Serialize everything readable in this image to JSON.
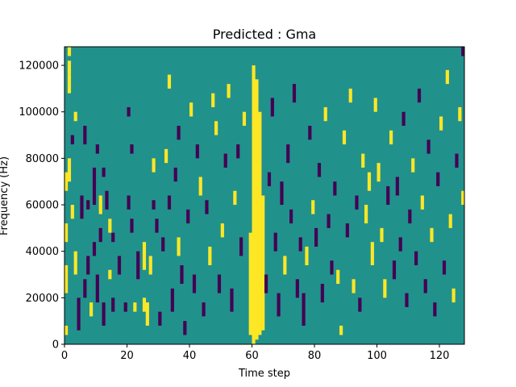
{
  "chart_data": {
    "type": "heatmap",
    "title": "Predicted : Gma",
    "xlabel": "Time step",
    "ylabel": "Frequency (Hz)",
    "xlim": [
      0,
      128
    ],
    "ylim": [
      0,
      128000
    ],
    "x_ticks": [
      "0",
      "20",
      "40",
      "60",
      "80",
      "100",
      "120"
    ],
    "y_ticks": [
      "0",
      "20000",
      "40000",
      "60000",
      "80000",
      "100000",
      "120000"
    ],
    "grid": false,
    "colors": {
      "background": "#21918c",
      "high": "#fde725",
      "low": "#440154"
    },
    "cell_values": {
      "background": 0.5,
      "high": 1,
      "low": 0
    },
    "cells": [
      {
        "t": 0,
        "f": 4000,
        "h": 4000,
        "v": 1
      },
      {
        "t": 0,
        "f": 22000,
        "h": 12000,
        "v": 1
      },
      {
        "t": 0,
        "f": 44000,
        "h": 8000,
        "v": 1
      },
      {
        "t": 0,
        "f": 66000,
        "h": 8000,
        "v": 1
      },
      {
        "t": 1,
        "f": 70000,
        "h": 10000,
        "v": 1
      },
      {
        "t": 1,
        "f": 108000,
        "h": 8000,
        "v": 1
      },
      {
        "t": 1,
        "f": 116000,
        "h": 6000,
        "v": 1
      },
      {
        "t": 1,
        "f": 124000,
        "h": 4000,
        "v": 1
      },
      {
        "t": 2,
        "f": 86000,
        "h": 4000,
        "v": 0
      },
      {
        "t": 2,
        "f": 54000,
        "h": 6000,
        "v": 1
      },
      {
        "t": 3,
        "f": 30000,
        "h": 10000,
        "v": 1
      },
      {
        "t": 3,
        "f": 96000,
        "h": 4000,
        "v": 1
      },
      {
        "t": 4,
        "f": 6000,
        "h": 14000,
        "v": 0
      },
      {
        "t": 5,
        "f": 54000,
        "h": 10000,
        "v": 0
      },
      {
        "t": 6,
        "f": 86000,
        "h": 8000,
        "v": 0
      },
      {
        "t": 6,
        "f": 20000,
        "h": 8000,
        "v": 0
      },
      {
        "t": 7,
        "f": 30000,
        "h": 8000,
        "v": 0
      },
      {
        "t": 7,
        "f": 58000,
        "h": 4000,
        "v": 0
      },
      {
        "t": 8,
        "f": 12000,
        "h": 6000,
        "v": 1
      },
      {
        "t": 9,
        "f": 38000,
        "h": 6000,
        "v": 0
      },
      {
        "t": 9,
        "f": 60000,
        "h": 16000,
        "v": 0
      },
      {
        "t": 10,
        "f": 82000,
        "h": 4000,
        "v": 0
      },
      {
        "t": 10,
        "f": 18000,
        "h": 12000,
        "v": 0
      },
      {
        "t": 11,
        "f": 56000,
        "h": 8000,
        "v": 1
      },
      {
        "t": 11,
        "f": 44000,
        "h": 6000,
        "v": 0
      },
      {
        "t": 12,
        "f": 8000,
        "h": 10000,
        "v": 0
      },
      {
        "t": 12,
        "f": 72000,
        "h": 4000,
        "v": 0
      },
      {
        "t": 13,
        "f": 58000,
        "h": 8000,
        "v": 0
      },
      {
        "t": 14,
        "f": 28000,
        "h": 4000,
        "v": 1
      },
      {
        "t": 14,
        "f": 48000,
        "h": 6000,
        "v": 1
      },
      {
        "t": 15,
        "f": 44000,
        "h": 4000,
        "v": 0
      },
      {
        "t": 15,
        "f": 14000,
        "h": 6000,
        "v": 0
      },
      {
        "t": 17,
        "f": 30000,
        "h": 8000,
        "v": 0
      },
      {
        "t": 19,
        "f": 14000,
        "h": 4000,
        "v": 0
      },
      {
        "t": 20,
        "f": 58000,
        "h": 6000,
        "v": 0
      },
      {
        "t": 20,
        "f": 98000,
        "h": 4000,
        "v": 0
      },
      {
        "t": 21,
        "f": 48000,
        "h": 6000,
        "v": 0
      },
      {
        "t": 21,
        "f": 82000,
        "h": 4000,
        "v": 0
      },
      {
        "t": 22,
        "f": 14000,
        "h": 4000,
        "v": 1
      },
      {
        "t": 23,
        "f": 28000,
        "h": 12000,
        "v": 0
      },
      {
        "t": 25,
        "f": 32000,
        "h": 12000,
        "v": 1
      },
      {
        "t": 25,
        "f": 14000,
        "h": 6000,
        "v": 1
      },
      {
        "t": 26,
        "f": 8000,
        "h": 10000,
        "v": 1
      },
      {
        "t": 27,
        "f": 30000,
        "h": 8000,
        "v": 1
      },
      {
        "t": 28,
        "f": 58000,
        "h": 4000,
        "v": 0
      },
      {
        "t": 28,
        "f": 74000,
        "h": 6000,
        "v": 1
      },
      {
        "t": 29,
        "f": 48000,
        "h": 6000,
        "v": 0
      },
      {
        "t": 30,
        "f": 8000,
        "h": 6000,
        "v": 0
      },
      {
        "t": 31,
        "f": 40000,
        "h": 6000,
        "v": 0
      },
      {
        "t": 32,
        "f": 78000,
        "h": 6000,
        "v": 1
      },
      {
        "t": 33,
        "f": 110000,
        "h": 6000,
        "v": 1
      },
      {
        "t": 33,
        "f": 58000,
        "h": 6000,
        "v": 0
      },
      {
        "t": 34,
        "f": 14000,
        "h": 10000,
        "v": 0
      },
      {
        "t": 35,
        "f": 70000,
        "h": 6000,
        "v": 0
      },
      {
        "t": 36,
        "f": 38000,
        "h": 8000,
        "v": 1
      },
      {
        "t": 36,
        "f": 88000,
        "h": 6000,
        "v": 0
      },
      {
        "t": 37,
        "f": 26000,
        "h": 8000,
        "v": 0
      },
      {
        "t": 38,
        "f": 4000,
        "h": 6000,
        "v": 0
      },
      {
        "t": 39,
        "f": 52000,
        "h": 6000,
        "v": 0
      },
      {
        "t": 40,
        "f": 98000,
        "h": 6000,
        "v": 1
      },
      {
        "t": 41,
        "f": 22000,
        "h": 8000,
        "v": 0
      },
      {
        "t": 42,
        "f": 80000,
        "h": 6000,
        "v": 0
      },
      {
        "t": 43,
        "f": 64000,
        "h": 8000,
        "v": 1
      },
      {
        "t": 44,
        "f": 12000,
        "h": 6000,
        "v": 0
      },
      {
        "t": 45,
        "f": 56000,
        "h": 6000,
        "v": 0
      },
      {
        "t": 46,
        "f": 34000,
        "h": 8000,
        "v": 1
      },
      {
        "t": 47,
        "f": 102000,
        "h": 6000,
        "v": 1
      },
      {
        "t": 48,
        "f": 90000,
        "h": 6000,
        "v": 1
      },
      {
        "t": 49,
        "f": 22000,
        "h": 8000,
        "v": 0
      },
      {
        "t": 50,
        "f": 46000,
        "h": 6000,
        "v": 1
      },
      {
        "t": 51,
        "f": 76000,
        "h": 6000,
        "v": 0
      },
      {
        "t": 52,
        "f": 106000,
        "h": 6000,
        "v": 1
      },
      {
        "t": 53,
        "f": 14000,
        "h": 10000,
        "v": 0
      },
      {
        "t": 54,
        "f": 60000,
        "h": 6000,
        "v": 1
      },
      {
        "t": 55,
        "f": 80000,
        "h": 6000,
        "v": 0
      },
      {
        "t": 56,
        "f": 38000,
        "h": 8000,
        "v": 0
      },
      {
        "t": 57,
        "f": 94000,
        "h": 6000,
        "v": 1
      },
      {
        "t": 59,
        "f": 4000,
        "h": 44000,
        "v": 1
      },
      {
        "t": 60,
        "f": 0,
        "h": 120000,
        "v": 1
      },
      {
        "t": 61,
        "f": 2000,
        "h": 112000,
        "v": 1
      },
      {
        "t": 62,
        "f": 4000,
        "h": 96000,
        "v": 1
      },
      {
        "t": 63,
        "f": 6000,
        "h": 58000,
        "v": 1
      },
      {
        "t": 64,
        "f": 22000,
        "h": 8000,
        "v": 0
      },
      {
        "t": 65,
        "f": 68000,
        "h": 6000,
        "v": 0
      },
      {
        "t": 66,
        "f": 98000,
        "h": 8000,
        "v": 0
      },
      {
        "t": 67,
        "f": 40000,
        "h": 8000,
        "v": 0
      },
      {
        "t": 68,
        "f": 12000,
        "h": 10000,
        "v": 0
      },
      {
        "t": 69,
        "f": 60000,
        "h": 10000,
        "v": 0
      },
      {
        "t": 70,
        "f": 30000,
        "h": 8000,
        "v": 1
      },
      {
        "t": 71,
        "f": 78000,
        "h": 8000,
        "v": 0
      },
      {
        "t": 72,
        "f": 52000,
        "h": 6000,
        "v": 0
      },
      {
        "t": 73,
        "f": 104000,
        "h": 8000,
        "v": 0
      },
      {
        "t": 74,
        "f": 20000,
        "h": 8000,
        "v": 0
      },
      {
        "t": 75,
        "f": 40000,
        "h": 6000,
        "v": 0
      },
      {
        "t": 76,
        "f": 8000,
        "h": 14000,
        "v": 0
      },
      {
        "t": 77,
        "f": 34000,
        "h": 8000,
        "v": 1
      },
      {
        "t": 78,
        "f": 88000,
        "h": 6000,
        "v": 0
      },
      {
        "t": 79,
        "f": 56000,
        "h": 6000,
        "v": 1
      },
      {
        "t": 80,
        "f": 42000,
        "h": 8000,
        "v": 0
      },
      {
        "t": 81,
        "f": 72000,
        "h": 6000,
        "v": 0
      },
      {
        "t": 82,
        "f": 18000,
        "h": 8000,
        "v": 0
      },
      {
        "t": 83,
        "f": 96000,
        "h": 6000,
        "v": 1
      },
      {
        "t": 84,
        "f": 50000,
        "h": 6000,
        "v": 0
      },
      {
        "t": 85,
        "f": 30000,
        "h": 6000,
        "v": 0
      },
      {
        "t": 86,
        "f": 64000,
        "h": 6000,
        "v": 0
      },
      {
        "t": 87,
        "f": 26000,
        "h": 6000,
        "v": 1
      },
      {
        "t": 88,
        "f": 4000,
        "h": 4000,
        "v": 1
      },
      {
        "t": 89,
        "f": 86000,
        "h": 6000,
        "v": 1
      },
      {
        "t": 90,
        "f": 46000,
        "h": 6000,
        "v": 0
      },
      {
        "t": 91,
        "f": 104000,
        "h": 6000,
        "v": 1
      },
      {
        "t": 92,
        "f": 22000,
        "h": 6000,
        "v": 1
      },
      {
        "t": 93,
        "f": 58000,
        "h": 6000,
        "v": 0
      },
      {
        "t": 94,
        "f": 14000,
        "h": 6000,
        "v": 0
      },
      {
        "t": 95,
        "f": 76000,
        "h": 6000,
        "v": 1
      },
      {
        "t": 96,
        "f": 52000,
        "h": 8000,
        "v": 1
      },
      {
        "t": 97,
        "f": 66000,
        "h": 8000,
        "v": 1
      },
      {
        "t": 98,
        "f": 34000,
        "h": 10000,
        "v": 1
      },
      {
        "t": 99,
        "f": 100000,
        "h": 6000,
        "v": 1
      },
      {
        "t": 100,
        "f": 70000,
        "h": 8000,
        "v": 1
      },
      {
        "t": 101,
        "f": 44000,
        "h": 6000,
        "v": 1
      },
      {
        "t": 102,
        "f": 20000,
        "h": 8000,
        "v": 1
      },
      {
        "t": 103,
        "f": 60000,
        "h": 8000,
        "v": 0
      },
      {
        "t": 104,
        "f": 86000,
        "h": 6000,
        "v": 1
      },
      {
        "t": 105,
        "f": 28000,
        "h": 8000,
        "v": 0
      },
      {
        "t": 106,
        "f": 64000,
        "h": 8000,
        "v": 0
      },
      {
        "t": 107,
        "f": 40000,
        "h": 6000,
        "v": 0
      },
      {
        "t": 108,
        "f": 94000,
        "h": 6000,
        "v": 0
      },
      {
        "t": 109,
        "f": 16000,
        "h": 6000,
        "v": 0
      },
      {
        "t": 110,
        "f": 52000,
        "h": 6000,
        "v": 0
      },
      {
        "t": 111,
        "f": 74000,
        "h": 6000,
        "v": 1
      },
      {
        "t": 112,
        "f": 34000,
        "h": 6000,
        "v": 0
      },
      {
        "t": 113,
        "f": 104000,
        "h": 6000,
        "v": 0
      },
      {
        "t": 114,
        "f": 58000,
        "h": 6000,
        "v": 1
      },
      {
        "t": 115,
        "f": 22000,
        "h": 6000,
        "v": 0
      },
      {
        "t": 116,
        "f": 82000,
        "h": 6000,
        "v": 0
      },
      {
        "t": 117,
        "f": 44000,
        "h": 6000,
        "v": 1
      },
      {
        "t": 118,
        "f": 12000,
        "h": 6000,
        "v": 0
      },
      {
        "t": 119,
        "f": 68000,
        "h": 6000,
        "v": 0
      },
      {
        "t": 120,
        "f": 92000,
        "h": 6000,
        "v": 1
      },
      {
        "t": 121,
        "f": 30000,
        "h": 6000,
        "v": 0
      },
      {
        "t": 122,
        "f": 112000,
        "h": 6000,
        "v": 1
      },
      {
        "t": 123,
        "f": 50000,
        "h": 6000,
        "v": 1
      },
      {
        "t": 124,
        "f": 18000,
        "h": 6000,
        "v": 1
      },
      {
        "t": 125,
        "f": 76000,
        "h": 6000,
        "v": 0
      },
      {
        "t": 126,
        "f": 96000,
        "h": 6000,
        "v": 1
      },
      {
        "t": 127,
        "f": 60000,
        "h": 6000,
        "v": 1
      },
      {
        "t": 127,
        "f": 124000,
        "h": 4000,
        "v": 0
      }
    ]
  }
}
